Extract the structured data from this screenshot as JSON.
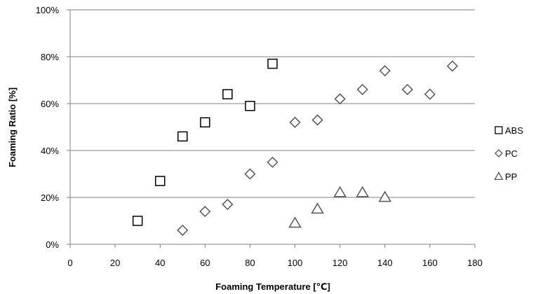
{
  "chart_data": {
    "type": "scatter",
    "title": "",
    "xlabel": "Foaming Temperature [℃]",
    "ylabel": "Foaming Ratio [%]",
    "xlim": [
      0,
      180
    ],
    "ylim": [
      0,
      100
    ],
    "x_ticks": [
      0,
      20,
      40,
      60,
      80,
      100,
      120,
      140,
      160,
      180
    ],
    "y_ticks": [
      0,
      20,
      40,
      60,
      80,
      100
    ],
    "y_tick_labels": [
      "0%",
      "20%",
      "40%",
      "60%",
      "80%",
      "100%"
    ],
    "grid": "horizontal",
    "legend_position": "right",
    "series": [
      {
        "name": "ABS",
        "marker": "square",
        "color": "#000000",
        "x": [
          30,
          40,
          50,
          60,
          70,
          80,
          90
        ],
        "y": [
          10,
          27,
          46,
          52,
          64,
          59,
          77
        ]
      },
      {
        "name": "PC",
        "marker": "diamond",
        "color": "#555555",
        "x": [
          50,
          60,
          70,
          80,
          90,
          100,
          110,
          120,
          130,
          140,
          150,
          160,
          170
        ],
        "y": [
          6,
          14,
          17,
          30,
          35,
          52,
          53,
          62,
          66,
          74,
          66,
          64,
          76
        ]
      },
      {
        "name": "PP",
        "marker": "triangle",
        "color": "#555555",
        "x": [
          100,
          110,
          120,
          130,
          140
        ],
        "y": [
          9,
          15,
          22,
          22,
          20
        ]
      }
    ]
  }
}
